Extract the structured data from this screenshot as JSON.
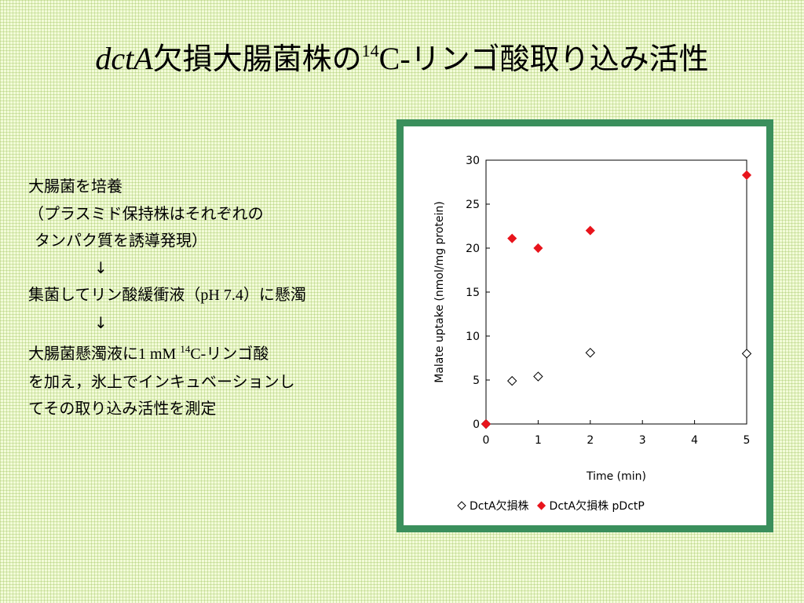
{
  "slide": {
    "title": {
      "gene": "dctA",
      "middle": "欠損大腸菌株の",
      "isotope_mass": "14",
      "isotope_element": "C-",
      "end": "リンゴ酸取り込み活性"
    },
    "text": {
      "line1": "大腸菌を培養",
      "line2": "（プラスミド保持株はそれぞれの",
      "line3": "タンパク質を誘導発現）",
      "arrow1": "↓",
      "line4_a": "集菌してリン酸緩衝液（",
      "line4_ph": "pH 7.4",
      "line4_b": "）に懸濁",
      "arrow2": "↓",
      "line5_a": "大腸菌懸濁液に",
      "line5_conc": "1 mM ",
      "line5_mass": "14",
      "line5_el": "C-",
      "line5_b": "リンゴ酸",
      "line6": "を加え，氷上でインキュベーションし",
      "line7": "てその取り込み活性を測定"
    }
  },
  "chart_data": {
    "type": "scatter",
    "xlabel": "Time (min)",
    "ylabel": "Malate uptake (nmol/mg protein)",
    "xlim": [
      0,
      5
    ],
    "ylim": [
      0,
      30
    ],
    "xticks": [
      0,
      1,
      2,
      3,
      4,
      5
    ],
    "yticks": [
      0,
      5,
      10,
      15,
      20,
      25,
      30
    ],
    "grid": false,
    "legend_position": "bottom",
    "series": [
      {
        "name": "DctA欠損株",
        "marker": "open-diamond",
        "color": "#000000",
        "x": [
          0,
          0.5,
          1,
          2,
          5
        ],
        "y": [
          0,
          4.9,
          5.4,
          8.1,
          8.0
        ]
      },
      {
        "name": "DctA欠損株 pDctP",
        "marker": "filled-diamond",
        "color": "#e8141c",
        "x": [
          0,
          0.5,
          1,
          2,
          5
        ],
        "y": [
          0,
          21.1,
          20.0,
          22.0,
          28.3
        ]
      }
    ]
  }
}
